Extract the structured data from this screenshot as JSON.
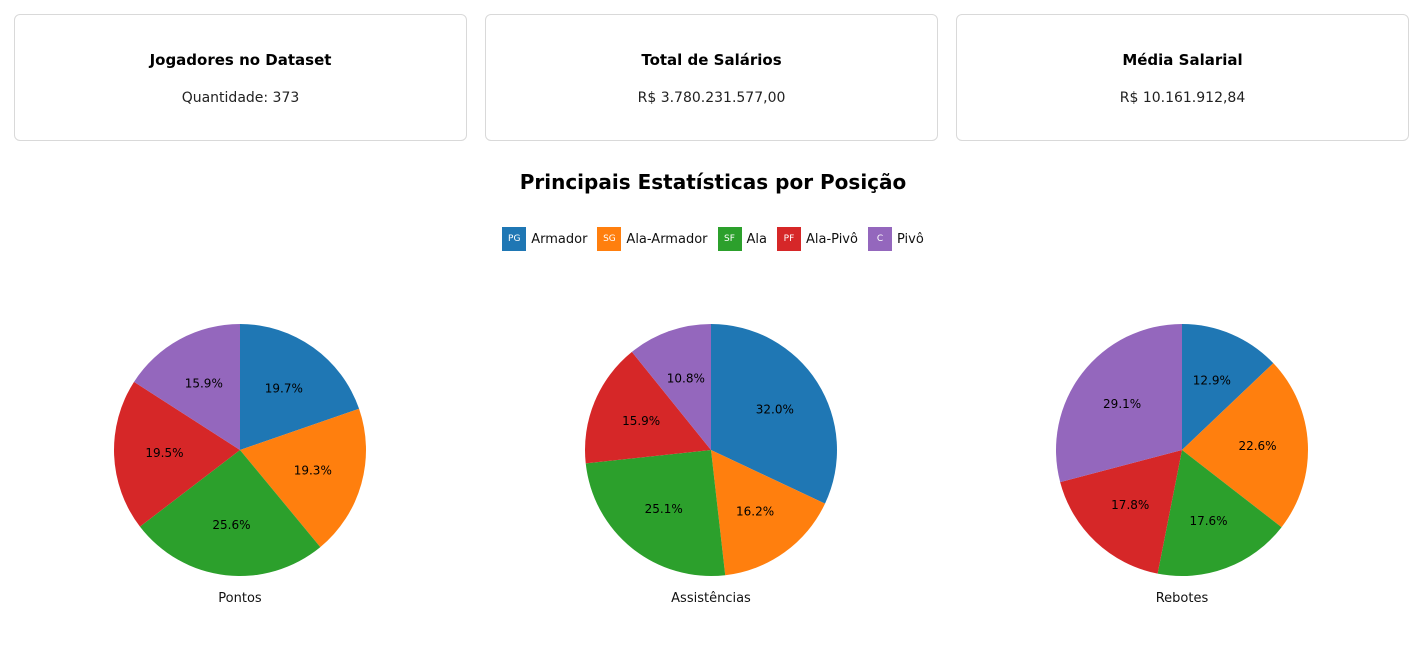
{
  "cards": [
    {
      "title": "Jogadores no Dataset",
      "value": "Quantidade: 373"
    },
    {
      "title": "Total de Salários",
      "value": "R$ 3.780.231.577,00"
    },
    {
      "title": "Média Salarial",
      "value": "R$ 10.161.912,84"
    }
  ],
  "section_title": "Principais Estatísticas por Posição",
  "legend": [
    {
      "code": "PG",
      "label": "Armador",
      "color": "#1f77b4"
    },
    {
      "code": "SG",
      "label": "Ala-Armador",
      "color": "#ff7f0e"
    },
    {
      "code": "SF",
      "label": "Ala",
      "color": "#2ca02c"
    },
    {
      "code": "PF",
      "label": "Ala-Pivô",
      "color": "#d62728"
    },
    {
      "code": "C",
      "label": "Pivô",
      "color": "#9467bd"
    }
  ],
  "chart_data": [
    {
      "type": "pie",
      "title": "Pontos",
      "categories": [
        "Armador",
        "Ala-Armador",
        "Ala",
        "Ala-Pivô",
        "Pivô"
      ],
      "values": [
        19.7,
        19.3,
        25.6,
        19.5,
        15.9
      ],
      "labels": [
        "19.7%",
        "19.3%",
        "25.6%",
        "19.5%",
        "15.9%"
      ]
    },
    {
      "type": "pie",
      "title": "Assistências",
      "categories": [
        "Armador",
        "Ala-Armador",
        "Ala",
        "Ala-Pivô",
        "Pivô"
      ],
      "values": [
        32.0,
        16.2,
        25.1,
        15.9,
        10.8
      ],
      "labels": [
        "32.0%",
        "16.2%",
        "25.1%",
        "15.9%",
        "10.8%"
      ]
    },
    {
      "type": "pie",
      "title": "Rebotes",
      "categories": [
        "Armador",
        "Ala-Armador",
        "Ala",
        "Ala-Pivô",
        "Pivô"
      ],
      "values": [
        12.9,
        22.6,
        17.6,
        17.8,
        29.1
      ],
      "labels": [
        "12.9%",
        "22.6%",
        "17.6%",
        "17.8%",
        "29.1%"
      ]
    }
  ]
}
